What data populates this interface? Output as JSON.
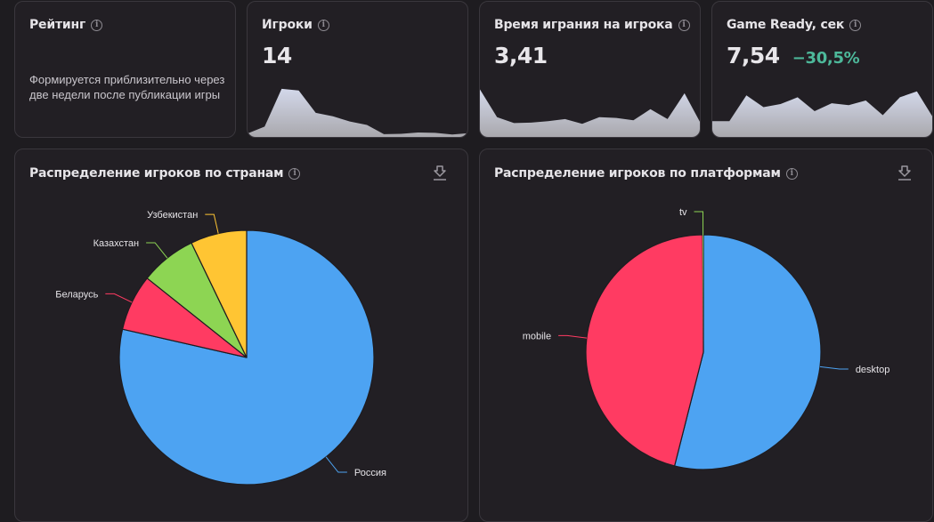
{
  "cards": {
    "rating": {
      "title": "Рейтинг",
      "note": "Формируется приблизительно через две недели после публикации игры"
    },
    "players": {
      "title": "Игроки",
      "value": "14",
      "sparkline": [
        1,
        3,
        14,
        13.5,
        7,
        6,
        4.5,
        3.5,
        0.8,
        0.9,
        1.3,
        1.2,
        0.7,
        1.1
      ]
    },
    "playtime": {
      "title": "Время играния на игрока",
      "value": "3,41",
      "sparkline": [
        12,
        5,
        3.5,
        3.6,
        4,
        4.5,
        3.3,
        5,
        4.8,
        4.2,
        7,
        4.5,
        11,
        3
      ]
    },
    "game_ready": {
      "title": "Game Ready, сек",
      "value": "7,54",
      "delta": "−30,5%",
      "delta_color": "#4db89a",
      "sparkline": [
        4,
        4,
        10.5,
        7.5,
        8.3,
        10,
        6.5,
        8.5,
        8,
        9.2,
        5.5,
        10,
        11.5,
        4.5
      ]
    }
  },
  "countries_panel": {
    "title": "Распределение игроков по странам",
    "download_icon": "download-icon"
  },
  "platforms_panel": {
    "title": "Распределение игроков по платформам",
    "download_icon": "download-icon"
  },
  "chart_data": [
    {
      "type": "pie",
      "title": "Распределение игроков по странам",
      "slices": [
        {
          "label": "Россия",
          "value": 11,
          "color": "#4da3f2"
        },
        {
          "label": "Беларусь",
          "value": 1,
          "color": "#ff3b62"
        },
        {
          "label": "Казахстан",
          "value": 1,
          "color": "#8dd553"
        },
        {
          "label": "Узбекистан",
          "value": 1,
          "color": "#ffc533"
        }
      ],
      "start_angle_deg": 0,
      "direction": "clockwise",
      "labels": "outside-with-leader-lines"
    },
    {
      "type": "pie",
      "title": "Распределение игроков по платформам",
      "slices": [
        {
          "label": "desktop",
          "value": 54,
          "color": "#4da3f2"
        },
        {
          "label": "mobile",
          "value": 46,
          "color": "#ff3b62"
        },
        {
          "label": "tv",
          "value": 0.1,
          "color": "#8dd553"
        }
      ],
      "start_angle_deg": 0,
      "direction": "clockwise",
      "labels": "outside-with-leader-lines"
    }
  ]
}
